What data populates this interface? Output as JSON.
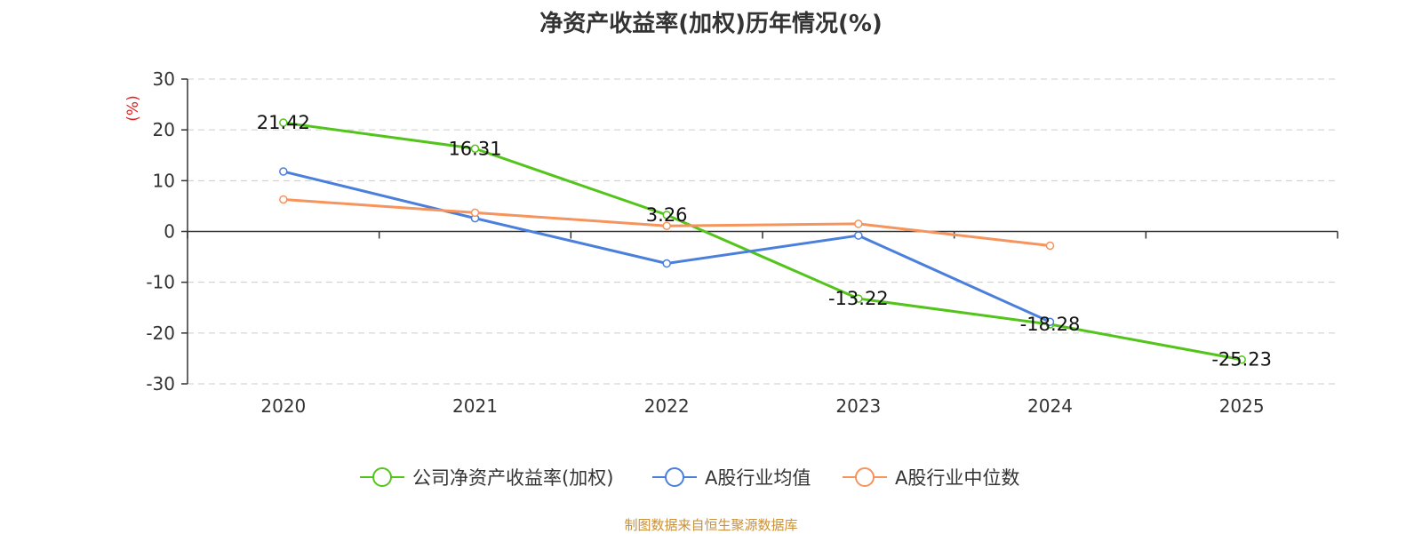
{
  "title": "净资产收益率(加权)历年情况(%)",
  "source": "制图数据来自恒生聚源数据库",
  "chart_data": {
    "type": "line",
    "ylabel": "(%)",
    "ylim": [
      -30,
      30
    ],
    "yticks": [
      30,
      20,
      10,
      0,
      -10,
      -20,
      -30
    ],
    "categories": [
      "2020",
      "2021",
      "2022",
      "2023",
      "2024",
      "2025"
    ],
    "grid": true,
    "legend_position": "bottom",
    "series": [
      {
        "name": "公司净资产收益率(加权)",
        "color": "#52c41a",
        "values": [
          21.42,
          16.31,
          3.26,
          -13.22,
          -18.28,
          -25.23
        ],
        "labels": true
      },
      {
        "name": "A股行业均值",
        "color": "#4a7fdb",
        "values": [
          11.8,
          2.6,
          -6.3,
          -0.8,
          -17.8,
          null
        ],
        "labels": false
      },
      {
        "name": "A股行业中位数",
        "color": "#f5945c",
        "values": [
          6.3,
          3.7,
          1.1,
          1.5,
          -2.8,
          null
        ],
        "labels": false
      }
    ]
  }
}
